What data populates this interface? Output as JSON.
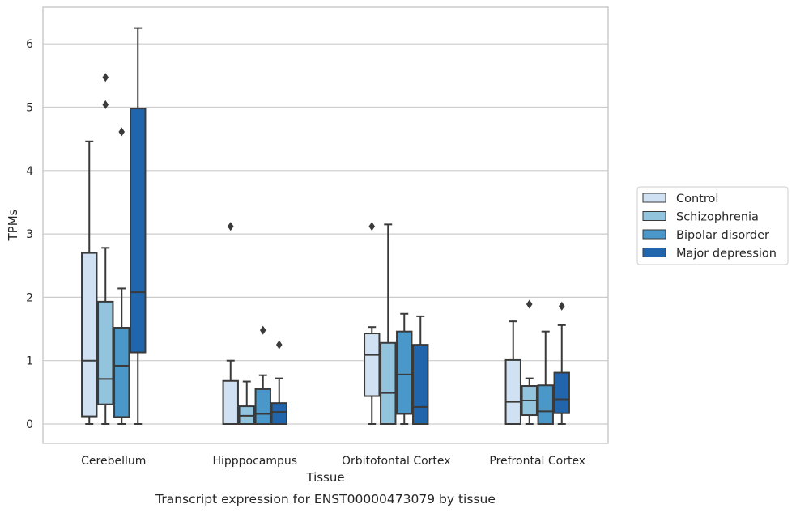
{
  "chart_data": {
    "type": "box",
    "title": "Transcript expression for ENST00000473079 by tissue",
    "xlabel": "Tissue",
    "ylabel": "TPMs",
    "ylim": [
      -0.3,
      6.55
    ],
    "yticks": [
      0,
      1,
      2,
      3,
      4,
      5,
      6
    ],
    "grid": true,
    "legend_position": "right",
    "categories": [
      "Cerebellum",
      "Hipppocampus",
      "Orbitofontal Cortex",
      "Prefrontal Cortex"
    ],
    "series": [
      {
        "name": "Control",
        "color": "#cfe1f2",
        "boxes": [
          {
            "whislo": 0.0,
            "q1": 0.12,
            "med": 1.0,
            "q3": 2.7,
            "whishi": 4.46,
            "fliers": []
          },
          {
            "whislo": 0.0,
            "q1": 0.0,
            "med": 0.0,
            "q3": 0.68,
            "whishi": 1.0,
            "fliers": [
              3.12
            ]
          },
          {
            "whislo": 0.0,
            "q1": 0.44,
            "med": 1.09,
            "q3": 1.43,
            "whishi": 1.53,
            "fliers": [
              3.12
            ]
          },
          {
            "whislo": 0.0,
            "q1": 0.0,
            "med": 0.35,
            "q3": 1.01,
            "whishi": 1.62,
            "fliers": []
          }
        ]
      },
      {
        "name": "Schizophrenia",
        "color": "#93c4de",
        "boxes": [
          {
            "whislo": 0.0,
            "q1": 0.31,
            "med": 0.71,
            "q3": 1.93,
            "whishi": 2.78,
            "fliers": [
              5.04,
              5.47
            ]
          },
          {
            "whislo": 0.0,
            "q1": 0.0,
            "med": 0.13,
            "q3": 0.28,
            "whishi": 0.67,
            "fliers": []
          },
          {
            "whislo": 0.0,
            "q1": 0.0,
            "med": 0.49,
            "q3": 1.28,
            "whishi": 3.15,
            "fliers": []
          },
          {
            "whislo": 0.0,
            "q1": 0.14,
            "med": 0.37,
            "q3": 0.6,
            "whishi": 0.72,
            "fliers": [
              1.89
            ]
          }
        ]
      },
      {
        "name": "Bipolar disorder",
        "color": "#4a98c9",
        "boxes": [
          {
            "whislo": 0.0,
            "q1": 0.11,
            "med": 0.92,
            "q3": 1.52,
            "whishi": 2.14,
            "fliers": [
              4.61
            ]
          },
          {
            "whislo": 0.0,
            "q1": 0.0,
            "med": 0.16,
            "q3": 0.55,
            "whishi": 0.77,
            "fliers": [
              1.48
            ]
          },
          {
            "whislo": 0.0,
            "q1": 0.16,
            "med": 0.78,
            "q3": 1.46,
            "whishi": 1.74,
            "fliers": []
          },
          {
            "whislo": 0.0,
            "q1": 0.0,
            "med": 0.2,
            "q3": 0.61,
            "whishi": 1.46,
            "fliers": []
          }
        ]
      },
      {
        "name": "Major depression",
        "color": "#2166ac",
        "boxes": [
          {
            "whislo": 0.0,
            "q1": 1.13,
            "med": 2.08,
            "q3": 4.98,
            "whishi": 6.25,
            "fliers": []
          },
          {
            "whislo": 0.0,
            "q1": 0.0,
            "med": 0.19,
            "q3": 0.33,
            "whishi": 0.72,
            "fliers": [
              1.25
            ]
          },
          {
            "whislo": 0.0,
            "q1": 0.0,
            "med": 0.27,
            "q3": 1.25,
            "whishi": 1.7,
            "fliers": []
          },
          {
            "whislo": 0.0,
            "q1": 0.17,
            "med": 0.39,
            "q3": 0.81,
            "whishi": 1.56,
            "fliers": [
              1.86
            ]
          }
        ]
      }
    ]
  }
}
